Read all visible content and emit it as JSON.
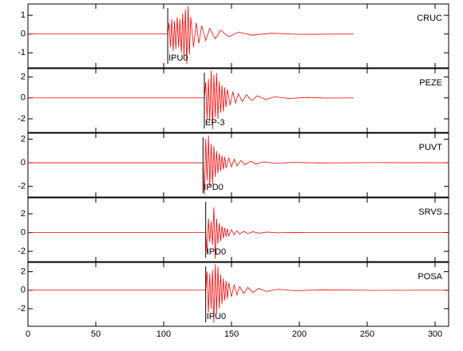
{
  "chart_data": [
    {
      "type": "line",
      "label": "CRUC",
      "color": "#ff0000",
      "x": [
        0,
        103,
        104,
        105,
        106,
        107,
        108,
        109,
        110,
        111,
        112,
        113,
        114,
        115,
        116,
        117,
        118,
        119,
        120,
        122,
        124,
        126,
        128,
        131,
        134,
        138,
        142,
        148,
        155,
        165,
        180,
        200,
        240
      ],
      "values": [
        0,
        0,
        0.6,
        -0.7,
        0.8,
        -0.9,
        0.7,
        -0.8,
        0.9,
        -0.7,
        0.8,
        -1.0,
        1.1,
        -1.2,
        1.3,
        -1.6,
        1.5,
        -1.1,
        0.9,
        -0.7,
        0.6,
        -0.5,
        0.45,
        -0.35,
        0.3,
        -0.25,
        0.2,
        -0.15,
        0.1,
        -0.06,
        0.04,
        -0.02,
        0
      ],
      "pick": {
        "x": 103,
        "label": "IPU0"
      },
      "xlim": [
        0,
        310
      ],
      "ylim": [
        -1.8,
        1.6
      ],
      "yticks": [
        -1,
        0,
        1
      ]
    },
    {
      "type": "line",
      "label": "PEZE",
      "color": "#ff0000",
      "x": [
        0,
        130,
        131,
        132,
        133,
        134,
        135,
        136,
        137,
        138,
        139,
        140,
        141,
        142,
        143,
        144,
        145,
        146,
        147,
        149,
        151,
        153,
        155,
        158,
        161,
        165,
        169,
        175,
        182,
        192,
        205,
        222,
        240
      ],
      "values": [
        0,
        0,
        1.5,
        -2.0,
        1.8,
        -2.2,
        2.6,
        -3.0,
        2.2,
        -1.8,
        2.4,
        -2.0,
        1.6,
        -1.4,
        1.2,
        -1.3,
        1.0,
        -0.9,
        0.8,
        -0.7,
        0.6,
        -0.5,
        0.4,
        -0.35,
        0.3,
        -0.25,
        0.2,
        -0.15,
        0.1,
        -0.06,
        0.04,
        -0.02,
        0
      ],
      "pick": {
        "x": 130,
        "label": "EP-3"
      },
      "xlim": [
        0,
        310
      ],
      "ylim": [
        -3.3,
        2.8
      ],
      "yticks": [
        -2,
        0,
        2
      ]
    },
    {
      "type": "line",
      "label": "PUVT",
      "color": "#ff0000",
      "x": [
        0,
        129,
        130,
        131,
        132,
        133,
        134,
        135,
        136,
        137,
        138,
        139,
        140,
        141,
        142,
        143,
        144,
        145,
        146,
        148,
        150,
        152,
        154,
        157,
        160,
        164,
        168,
        174,
        182,
        195,
        215,
        250,
        310
      ],
      "values": [
        0,
        0,
        -2.7,
        2.0,
        -1.5,
        2.3,
        -2.0,
        1.6,
        -1.8,
        1.4,
        -1.2,
        1.0,
        -0.9,
        0.8,
        -0.7,
        0.6,
        -0.55,
        0.5,
        -0.45,
        0.4,
        -0.35,
        0.3,
        -0.25,
        0.2,
        -0.17,
        0.14,
        -0.1,
        0.08,
        -0.05,
        0.03,
        -0.02,
        0.01,
        0
      ],
      "pick": {
        "x": 129,
        "label": "IPD0"
      },
      "xlim": [
        0,
        310
      ],
      "ylim": [
        -2.9,
        2.5
      ],
      "yticks": [
        -2,
        0,
        2
      ]
    },
    {
      "type": "line",
      "label": "SRVS",
      "color": "#ff0000",
      "x": [
        0,
        131,
        132,
        133,
        134,
        135,
        136,
        137,
        138,
        139,
        140,
        141,
        142,
        143,
        144,
        145,
        146,
        147,
        148,
        150,
        152,
        154,
        156,
        159,
        162,
        166,
        170,
        176,
        184,
        197,
        217,
        252,
        310
      ],
      "values": [
        0,
        0,
        -2.2,
        1.5,
        -1.0,
        1.2,
        -1.3,
        2.7,
        -2.8,
        1.5,
        -1.2,
        1.0,
        -0.9,
        0.7,
        -0.6,
        0.5,
        -0.45,
        0.4,
        -0.35,
        0.3,
        -0.25,
        0.2,
        -0.17,
        0.14,
        -0.11,
        0.09,
        -0.07,
        0.05,
        -0.03,
        0.02,
        -0.01,
        0.01,
        0
      ],
      "pick": {
        "x": 131,
        "label": "IPD0"
      },
      "xlim": [
        0,
        310
      ],
      "ylim": [
        -3.1,
        3.7
      ],
      "yticks": [
        -2,
        0,
        2
      ]
    },
    {
      "type": "line",
      "label": "POSA",
      "color": "#ff0000",
      "x": [
        0,
        131,
        132,
        133,
        134,
        135,
        136,
        137,
        138,
        139,
        140,
        141,
        142,
        143,
        144,
        145,
        146,
        147,
        148,
        150,
        152,
        154,
        156,
        159,
        162,
        166,
        170,
        176,
        184,
        197,
        217,
        252,
        310
      ],
      "values": [
        0,
        0,
        2.0,
        -2.4,
        1.8,
        -2.0,
        2.2,
        -3.5,
        2.8,
        -2.5,
        2.6,
        -2.0,
        1.7,
        -1.5,
        1.3,
        -1.1,
        1.0,
        -0.9,
        0.8,
        -0.7,
        0.6,
        -0.5,
        0.4,
        -0.35,
        0.3,
        -0.25,
        0.2,
        -0.15,
        0.1,
        -0.06,
        0.04,
        -0.02,
        0
      ],
      "pick": {
        "x": 131,
        "label": "IPU0"
      },
      "xlim": [
        0,
        310
      ],
      "ylim": [
        -3.9,
        3.0
      ],
      "yticks": [
        -2,
        0,
        2
      ],
      "xticks": [
        0,
        50,
        100,
        150,
        200,
        250,
        300
      ]
    }
  ]
}
